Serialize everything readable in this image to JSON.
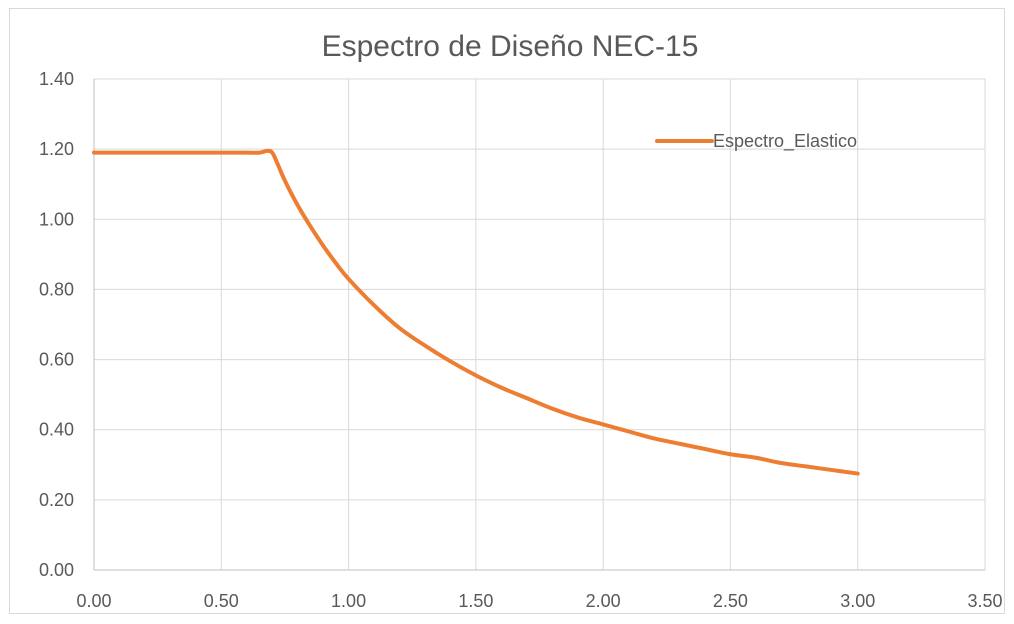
{
  "chart_data": {
    "type": "line",
    "title": "Espectro de Diseño NEC-15",
    "xlabel": "",
    "ylabel": "",
    "xlim": [
      0,
      3.5
    ],
    "ylim": [
      0,
      1.4
    ],
    "x_ticks": [
      "0.00",
      "0.50",
      "1.00",
      "1.50",
      "2.00",
      "2.50",
      "3.00",
      "3.50"
    ],
    "y_ticks": [
      "0.00",
      "0.20",
      "0.40",
      "0.60",
      "0.80",
      "1.00",
      "1.20",
      "1.40"
    ],
    "grid": "vertical and horizontal major gridlines",
    "legend_position": "top-right",
    "series": [
      {
        "name": "Espectro_Elastico",
        "color": "#ed7d31",
        "x": [
          0.0,
          0.1,
          0.2,
          0.3,
          0.4,
          0.5,
          0.6,
          0.65,
          0.68,
          0.7,
          0.72,
          0.75,
          0.8,
          0.85,
          0.9,
          0.95,
          1.0,
          1.1,
          1.2,
          1.3,
          1.4,
          1.5,
          1.6,
          1.7,
          1.8,
          1.9,
          2.0,
          2.1,
          2.2,
          2.3,
          2.4,
          2.5,
          2.6,
          2.7,
          2.8,
          2.9,
          3.0
        ],
        "y": [
          1.19,
          1.19,
          1.19,
          1.19,
          1.19,
          1.19,
          1.19,
          1.19,
          1.195,
          1.19,
          1.16,
          1.11,
          1.04,
          0.98,
          0.925,
          0.875,
          0.83,
          0.755,
          0.69,
          0.64,
          0.595,
          0.555,
          0.52,
          0.49,
          0.46,
          0.435,
          0.415,
          0.395,
          0.375,
          0.36,
          0.345,
          0.33,
          0.32,
          0.305,
          0.295,
          0.285,
          0.275
        ]
      }
    ]
  }
}
